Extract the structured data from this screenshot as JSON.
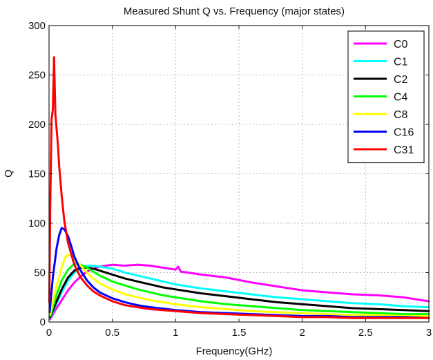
{
  "chart_data": {
    "type": "line",
    "title": "Measured Shunt Q vs. Frequency (major states)",
    "xlabel": "Frequency(GHz)",
    "ylabel": "Q",
    "xlim": [
      0,
      3
    ],
    "ylim": [
      0,
      300
    ],
    "xticks": [
      0,
      0.5,
      1,
      1.5,
      2,
      2.5,
      3
    ],
    "xtick_labels": [
      "0",
      "0.5",
      "1",
      "1.5",
      "2",
      "2.5",
      "3"
    ],
    "yticks": [
      0,
      50,
      100,
      150,
      200,
      250,
      300
    ],
    "ytick_labels": [
      "0",
      "50",
      "100",
      "150",
      "200",
      "250",
      "300"
    ],
    "grid": true,
    "legend_position": "top-right",
    "series": [
      {
        "name": "C0",
        "color": "#ff00ff",
        "points": [
          [
            0.01,
            3
          ],
          [
            0.05,
            12
          ],
          [
            0.1,
            22
          ],
          [
            0.15,
            32
          ],
          [
            0.2,
            40
          ],
          [
            0.25,
            46
          ],
          [
            0.3,
            51
          ],
          [
            0.35,
            54
          ],
          [
            0.4,
            56
          ],
          [
            0.45,
            57
          ],
          [
            0.5,
            58
          ],
          [
            0.6,
            57
          ],
          [
            0.7,
            58
          ],
          [
            0.8,
            57
          ],
          [
            0.9,
            55
          ],
          [
            1.0,
            53
          ],
          [
            1.02,
            56
          ],
          [
            1.04,
            51
          ],
          [
            1.1,
            50
          ],
          [
            1.2,
            48
          ],
          [
            1.4,
            45
          ],
          [
            1.6,
            40
          ],
          [
            1.8,
            36
          ],
          [
            2.0,
            32
          ],
          [
            2.2,
            30
          ],
          [
            2.4,
            28
          ],
          [
            2.6,
            27
          ],
          [
            2.8,
            25
          ],
          [
            3.0,
            21
          ]
        ]
      },
      {
        "name": "C1",
        "color": "#00ffff",
        "points": [
          [
            0.01,
            4
          ],
          [
            0.05,
            16
          ],
          [
            0.1,
            30
          ],
          [
            0.15,
            42
          ],
          [
            0.2,
            50
          ],
          [
            0.25,
            55
          ],
          [
            0.3,
            57
          ],
          [
            0.35,
            57
          ],
          [
            0.4,
            56
          ],
          [
            0.5,
            54
          ],
          [
            0.6,
            50
          ],
          [
            0.7,
            47
          ],
          [
            0.8,
            44
          ],
          [
            0.9,
            41
          ],
          [
            1.0,
            38
          ],
          [
            1.2,
            34
          ],
          [
            1.4,
            31
          ],
          [
            1.6,
            28
          ],
          [
            1.8,
            25
          ],
          [
            2.0,
            23
          ],
          [
            2.2,
            21
          ],
          [
            2.4,
            19
          ],
          [
            2.6,
            18
          ],
          [
            2.8,
            16
          ],
          [
            3.0,
            15
          ]
        ]
      },
      {
        "name": "C2",
        "color": "#000000",
        "points": [
          [
            0.01,
            5
          ],
          [
            0.05,
            18
          ],
          [
            0.1,
            33
          ],
          [
            0.15,
            45
          ],
          [
            0.2,
            52
          ],
          [
            0.25,
            55
          ],
          [
            0.3,
            55
          ],
          [
            0.35,
            54
          ],
          [
            0.4,
            52
          ],
          [
            0.5,
            48
          ],
          [
            0.6,
            44
          ],
          [
            0.7,
            41
          ],
          [
            0.8,
            38
          ],
          [
            0.9,
            35
          ],
          [
            1.0,
            33
          ],
          [
            1.2,
            29
          ],
          [
            1.4,
            26
          ],
          [
            1.6,
            23
          ],
          [
            1.8,
            20
          ],
          [
            2.0,
            18
          ],
          [
            2.2,
            16
          ],
          [
            2.4,
            14
          ],
          [
            2.6,
            13
          ],
          [
            2.8,
            12
          ],
          [
            3.0,
            11
          ]
        ]
      },
      {
        "name": "C4",
        "color": "#00ff00",
        "points": [
          [
            0.01,
            6
          ],
          [
            0.05,
            24
          ],
          [
            0.1,
            42
          ],
          [
            0.15,
            53
          ],
          [
            0.2,
            59
          ],
          [
            0.25,
            58
          ],
          [
            0.3,
            55
          ],
          [
            0.35,
            51
          ],
          [
            0.4,
            47
          ],
          [
            0.5,
            41
          ],
          [
            0.6,
            37
          ],
          [
            0.7,
            33
          ],
          [
            0.8,
            30
          ],
          [
            0.9,
            27
          ],
          [
            1.0,
            25
          ],
          [
            1.2,
            21
          ],
          [
            1.4,
            18
          ],
          [
            1.6,
            16
          ],
          [
            1.8,
            14
          ],
          [
            2.0,
            12
          ],
          [
            2.2,
            11
          ],
          [
            2.4,
            10
          ],
          [
            2.6,
            9
          ],
          [
            2.8,
            8
          ],
          [
            3.0,
            8
          ]
        ]
      },
      {
        "name": "C8",
        "color": "#ffff00",
        "points": [
          [
            0.01,
            8
          ],
          [
            0.05,
            32
          ],
          [
            0.1,
            55
          ],
          [
            0.13,
            66
          ],
          [
            0.15,
            68
          ],
          [
            0.18,
            67
          ],
          [
            0.2,
            64
          ],
          [
            0.25,
            57
          ],
          [
            0.3,
            50
          ],
          [
            0.35,
            44
          ],
          [
            0.4,
            39
          ],
          [
            0.5,
            33
          ],
          [
            0.6,
            28
          ],
          [
            0.7,
            25
          ],
          [
            0.8,
            22
          ],
          [
            0.9,
            20
          ],
          [
            1.0,
            18
          ],
          [
            1.2,
            15
          ],
          [
            1.4,
            13
          ],
          [
            1.6,
            11
          ],
          [
            1.8,
            10
          ],
          [
            2.0,
            9
          ],
          [
            2.2,
            8
          ],
          [
            2.4,
            7
          ],
          [
            2.6,
            7
          ],
          [
            2.8,
            6
          ],
          [
            3.0,
            6
          ]
        ]
      },
      {
        "name": "C16",
        "color": "#0000ff",
        "points": [
          [
            0.005,
            10
          ],
          [
            0.03,
            45
          ],
          [
            0.06,
            75
          ],
          [
            0.08,
            88
          ],
          [
            0.1,
            95
          ],
          [
            0.12,
            94
          ],
          [
            0.15,
            87
          ],
          [
            0.18,
            75
          ],
          [
            0.2,
            66
          ],
          [
            0.25,
            52
          ],
          [
            0.3,
            42
          ],
          [
            0.35,
            35
          ],
          [
            0.4,
            30
          ],
          [
            0.5,
            24
          ],
          [
            0.6,
            20
          ],
          [
            0.7,
            17
          ],
          [
            0.8,
            15
          ],
          [
            1.0,
            12
          ],
          [
            1.2,
            10
          ],
          [
            1.4,
            9
          ],
          [
            1.6,
            8
          ],
          [
            1.8,
            7
          ],
          [
            2.0,
            6
          ],
          [
            2.2,
            6
          ],
          [
            2.4,
            5
          ],
          [
            2.6,
            5
          ],
          [
            2.8,
            5
          ],
          [
            3.0,
            4
          ]
        ]
      },
      {
        "name": "C31",
        "color": "#ff0000",
        "points": [
          [
            0.002,
            20
          ],
          [
            0.01,
            120
          ],
          [
            0.02,
            205
          ],
          [
            0.03,
            215
          ],
          [
            0.04,
            268
          ],
          [
            0.05,
            210
          ],
          [
            0.06,
            195
          ],
          [
            0.07,
            180
          ],
          [
            0.08,
            158
          ],
          [
            0.1,
            128
          ],
          [
            0.12,
            103
          ],
          [
            0.15,
            80
          ],
          [
            0.2,
            58
          ],
          [
            0.25,
            45
          ],
          [
            0.3,
            37
          ],
          [
            0.35,
            31
          ],
          [
            0.4,
            27
          ],
          [
            0.5,
            21
          ],
          [
            0.6,
            17
          ],
          [
            0.7,
            15
          ],
          [
            0.8,
            13
          ],
          [
            1.0,
            11
          ],
          [
            1.2,
            9
          ],
          [
            1.4,
            8
          ],
          [
            1.6,
            7
          ],
          [
            1.8,
            6
          ],
          [
            2.0,
            5
          ],
          [
            2.2,
            5
          ],
          [
            2.4,
            4
          ],
          [
            2.6,
            4
          ],
          [
            2.8,
            4
          ],
          [
            3.0,
            4
          ]
        ]
      }
    ]
  }
}
